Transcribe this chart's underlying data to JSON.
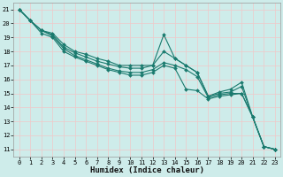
{
  "xlabel": "Humidex (Indice chaleur)",
  "bg_color": "#ceecea",
  "grid_color": "#f0c8c8",
  "line_color": "#1a7a6e",
  "xlim": [
    -0.5,
    23.5
  ],
  "ylim": [
    10.5,
    21.5
  ],
  "xticks": [
    0,
    1,
    2,
    3,
    4,
    5,
    6,
    7,
    8,
    9,
    10,
    11,
    12,
    13,
    14,
    15,
    16,
    17,
    18,
    19,
    20,
    21,
    22,
    23
  ],
  "yticks": [
    11,
    12,
    13,
    14,
    15,
    16,
    17,
    18,
    19,
    20,
    21
  ],
  "series": [
    {
      "x": [
        0,
        1,
        2,
        3,
        4,
        5,
        6,
        7,
        8,
        9,
        10,
        11,
        12,
        13,
        14,
        15,
        16,
        17,
        18,
        19,
        20,
        21,
        22,
        23
      ],
      "y": [
        21.0,
        20.2,
        19.5,
        19.3,
        18.5,
        18.0,
        17.8,
        17.5,
        17.3,
        17.0,
        17.0,
        17.0,
        17.0,
        19.2,
        17.5,
        17.0,
        16.5,
        14.8,
        15.1,
        15.3,
        15.8,
        13.3,
        11.2,
        11.0
      ]
    },
    {
      "x": [
        0,
        1,
        2,
        3,
        4,
        5,
        6,
        7,
        8,
        9,
        10,
        11,
        12,
        13,
        14,
        15,
        16,
        17,
        18,
        19,
        20,
        21,
        22,
        23
      ],
      "y": [
        21.0,
        20.2,
        19.5,
        19.2,
        18.3,
        17.9,
        17.6,
        17.3,
        17.1,
        16.9,
        16.8,
        16.8,
        17.0,
        18.0,
        17.5,
        17.0,
        16.5,
        14.8,
        15.0,
        15.1,
        15.5,
        13.3,
        11.2,
        11.0
      ]
    },
    {
      "x": [
        0,
        1,
        2,
        3,
        4,
        5,
        6,
        7,
        8,
        9,
        10,
        11,
        12,
        13,
        14,
        15,
        16,
        17,
        18,
        19,
        20,
        21,
        22,
        23
      ],
      "y": [
        21.0,
        20.2,
        19.5,
        19.1,
        18.2,
        17.7,
        17.4,
        17.1,
        16.8,
        16.6,
        16.5,
        16.5,
        16.7,
        17.2,
        17.0,
        16.7,
        16.2,
        14.7,
        14.9,
        15.0,
        15.0,
        13.3,
        11.2,
        11.0
      ]
    },
    {
      "x": [
        0,
        1,
        2,
        3,
        4,
        5,
        6,
        7,
        8,
        9,
        10,
        11,
        12,
        13,
        14,
        15,
        16,
        17,
        18,
        19,
        20,
        21,
        22,
        23
      ],
      "y": [
        21.0,
        20.2,
        19.3,
        19.0,
        18.0,
        17.6,
        17.3,
        17.0,
        16.7,
        16.5,
        16.3,
        16.3,
        16.5,
        17.0,
        16.8,
        15.3,
        15.2,
        14.6,
        14.8,
        14.9,
        15.0,
        13.3,
        11.2,
        11.0
      ]
    }
  ],
  "marker": "D",
  "markersize": 2.0,
  "linewidth": 0.8,
  "tick_fontsize": 5.0,
  "xlabel_fontsize": 6.5
}
